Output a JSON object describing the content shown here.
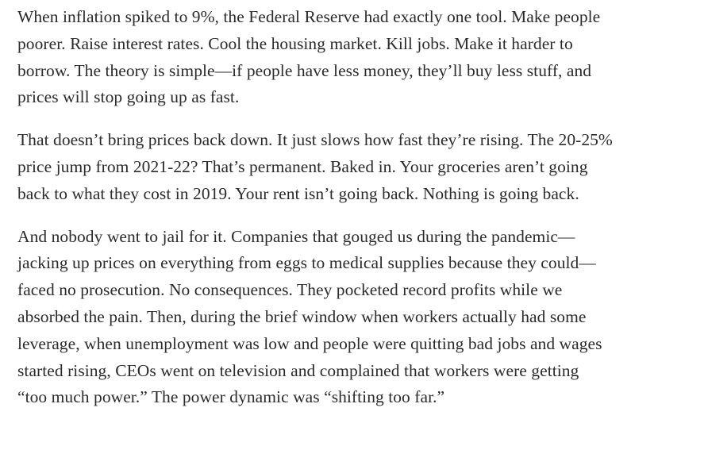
{
  "article": {
    "paragraphs": [
      {
        "lines": [
          "When inflation spiked to 9%, the Federal Reserve had exactly one tool. Make people",
          "poorer. Raise interest rates. Cool the housing market. Kill jobs. Make it harder to",
          "borrow. The theory is simple—if people have less money, they’ll buy less stuff, and",
          "prices will stop going up as fast."
        ]
      },
      {
        "lines": [
          "That doesn’t bring prices back down. It just slows how fast they’re rising. The 20-25%",
          "price jump from 2021-22? That’s permanent. Baked in. Your groceries aren’t going",
          "back to what they cost in 2019. Your rent isn’t going back. Nothing is going back."
        ]
      },
      {
        "lines": [
          "And nobody went to jail for it. Companies that gouged us during the pandemic—",
          "jacking up prices on everything from eggs to medical supplies because they could—",
          "faced no prosecution. No consequences. They pocketed record profits while we",
          "absorbed the pain. Then, during the brief window when workers actually had some",
          "leverage, when unemployment was low and people were quitting bad jobs and wages",
          "started rising, CEOs went on television and complained that workers were getting",
          "“too much power.” The power dynamic was “shifting too far.”"
        ]
      }
    ]
  }
}
